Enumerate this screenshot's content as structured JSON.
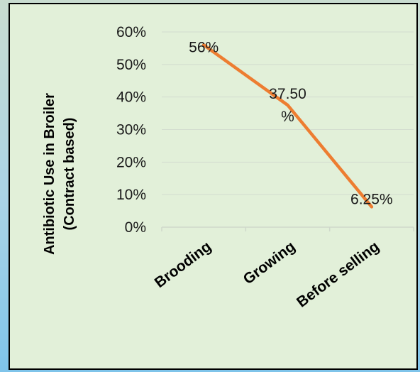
{
  "chart_data": {
    "type": "line",
    "categories": [
      "Brooding",
      "Growing",
      "Before selling"
    ],
    "series": [
      {
        "values": [
          56,
          37.5,
          6.25
        ],
        "color": "#ed7d31"
      }
    ],
    "data_labels": [
      "56%",
      "37.50\n%",
      "6.25%"
    ],
    "ylabel": "Antibiotic Use in Broiler (Contract based)",
    "ylabel_lines": [
      "Antibiotic Use in Broiler",
      "(Contract based)"
    ],
    "ylim": [
      0,
      60
    ],
    "yticks": [
      0,
      10,
      20,
      30,
      40,
      50,
      60
    ],
    "ytick_labels": [
      "0%",
      "10%",
      "20%",
      "30%",
      "40%",
      "50%",
      "60%"
    ],
    "grid": true
  }
}
